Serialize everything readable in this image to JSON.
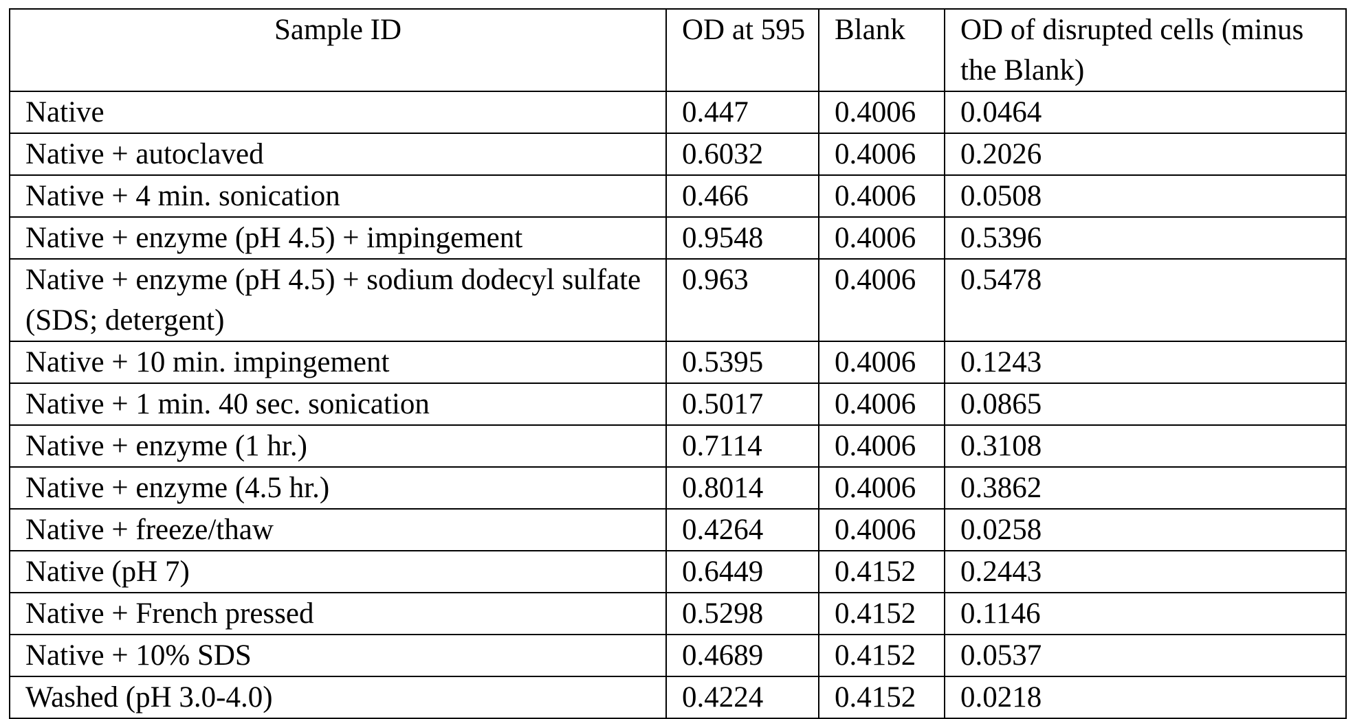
{
  "table": {
    "header": [
      "Sample ID",
      "OD at 595",
      "Blank",
      "OD of disrupted cells (minus the Blank)"
    ],
    "rows": [
      [
        "Native",
        "0.447",
        "0.4006",
        "0.0464"
      ],
      [
        "Native + autoclaved",
        "0.6032",
        "0.4006",
        "0.2026"
      ],
      [
        "Native + 4 min. sonication",
        "0.466",
        "0.4006",
        "0.0508"
      ],
      [
        "Native + enzyme (pH 4.5) + impingement",
        "0.9548",
        "0.4006",
        "0.5396"
      ],
      [
        "Native + enzyme (pH 4.5) + sodium dodecyl sulfate (SDS; detergent)",
        "0.963",
        "0.4006",
        "0.5478"
      ],
      [
        "Native + 10 min. impingement",
        "0.5395",
        "0.4006",
        "0.1243"
      ],
      [
        "Native + 1 min. 40 sec. sonication",
        "0.5017",
        "0.4006",
        "0.0865"
      ],
      [
        "Native + enzyme (1 hr.)",
        "0.7114",
        "0.4006",
        "0.3108"
      ],
      [
        "Native + enzyme (4.5 hr.)",
        "0.8014",
        "0.4006",
        "0.3862"
      ],
      [
        "Native + freeze/thaw",
        "0.4264",
        "0.4006",
        "0.0258"
      ],
      [
        "Native (pH 7)",
        "0.6449",
        "0.4152",
        "0.2443"
      ],
      [
        "Native + French pressed",
        "0.5298",
        "0.4152",
        "0.1146"
      ],
      [
        "Native + 10% SDS",
        "0.4689",
        "0.4152",
        "0.0537"
      ],
      [
        "Washed (pH 3.0-4.0)",
        "0.4224",
        "0.4152",
        "0.0218"
      ]
    ]
  }
}
